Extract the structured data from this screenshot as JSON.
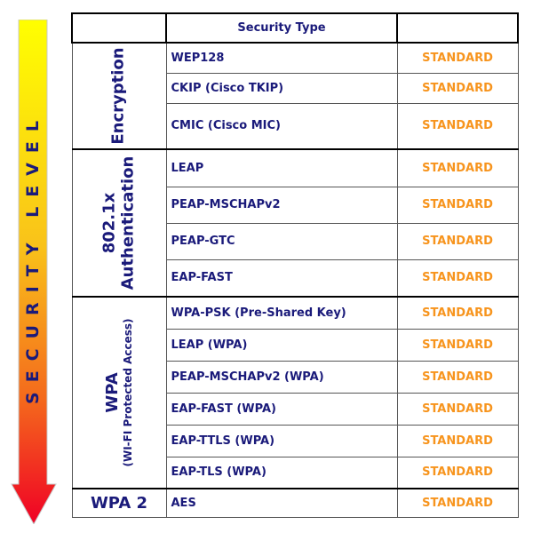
{
  "arrow": {
    "label": "SECURITY LEVEL",
    "gradient_top": "#ffff00",
    "gradient_bottom": "#ff0022"
  },
  "header": {
    "group_col": "",
    "type_col": "Security Type",
    "level_col": ""
  },
  "groups": [
    {
      "title": "Encryption",
      "subtitle": "",
      "rows": [
        {
          "type": "WEP128",
          "level": "STANDARD"
        },
        {
          "type": "CKIP (Cisco TKIP)",
          "level": "STANDARD"
        },
        {
          "type": "CMIC (Cisco MIC)",
          "level": "STANDARD"
        }
      ]
    },
    {
      "title": "802.1x",
      "subtitle": "Authentication",
      "rows": [
        {
          "type": "LEAP",
          "level": "STANDARD"
        },
        {
          "type": "PEAP-MSCHAPv2",
          "level": "STANDARD"
        },
        {
          "type": "PEAP-GTC",
          "level": "STANDARD"
        },
        {
          "type": "EAP-FAST",
          "level": "STANDARD"
        }
      ]
    },
    {
      "title": "WPA",
      "subtitle": "(WI-FI Protected Access)",
      "rows": [
        {
          "type": "WPA-PSK (Pre-Shared Key)",
          "level": "STANDARD"
        },
        {
          "type": "LEAP (WPA)",
          "level": "STANDARD"
        },
        {
          "type": "PEAP-MSCHAPv2 (WPA)",
          "level": "STANDARD"
        },
        {
          "type": "EAP-FAST (WPA)",
          "level": "STANDARD"
        },
        {
          "type": "EAP-TTLS (WPA)",
          "level": "STANDARD"
        },
        {
          "type": "EAP-TLS (WPA)",
          "level": "STANDARD"
        }
      ]
    },
    {
      "title": "WPA 2",
      "subtitle": "",
      "rows": [
        {
          "type": "AES",
          "level": "STANDARD"
        }
      ]
    }
  ],
  "colors": {
    "text": "#1a1a7a",
    "level": "#f7941d"
  }
}
